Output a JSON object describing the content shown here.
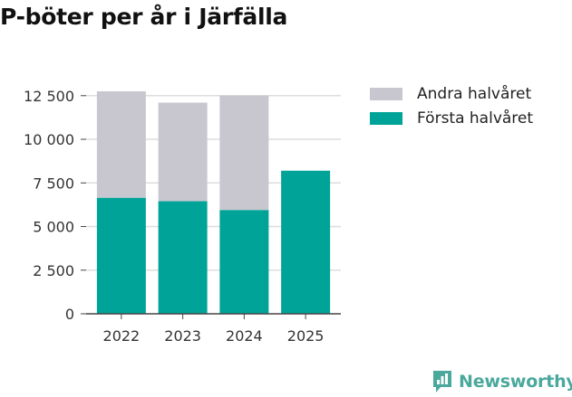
{
  "title": "P-böter per år i Järfälla",
  "brand": {
    "name": "Newsworthy",
    "icon": "newsworthy-logo-icon"
  },
  "colors": {
    "first_half": "#00a398",
    "second_half": "#c8c7d0",
    "grid": "#dddddd",
    "axis": "#444444",
    "brand": "#4aa89c"
  },
  "chart_data": {
    "type": "bar",
    "stacked": true,
    "title": "P-böter per år i Järfälla",
    "categories": [
      "2022",
      "2023",
      "2024",
      "2025"
    ],
    "series": [
      {
        "name": "Första halvåret",
        "values": [
          6650,
          6450,
          5950,
          8200
        ]
      },
      {
        "name": "Andra halvåret",
        "values": [
          6100,
          5650,
          6550,
          0
        ]
      }
    ],
    "yticks": [
      0,
      2500,
      5000,
      7500,
      10000,
      12500
    ],
    "ytick_labels": [
      "0",
      "2 500",
      "5 000",
      "7 500",
      "10 000",
      "12 500"
    ],
    "ylim": [
      0,
      12800
    ],
    "xlabel": "",
    "ylabel": "",
    "grid": true,
    "legend_position": "right"
  },
  "legend": [
    {
      "label": "Andra halvåret",
      "color": "#c8c7d0"
    },
    {
      "label": "Första halvåret",
      "color": "#00a398"
    }
  ]
}
